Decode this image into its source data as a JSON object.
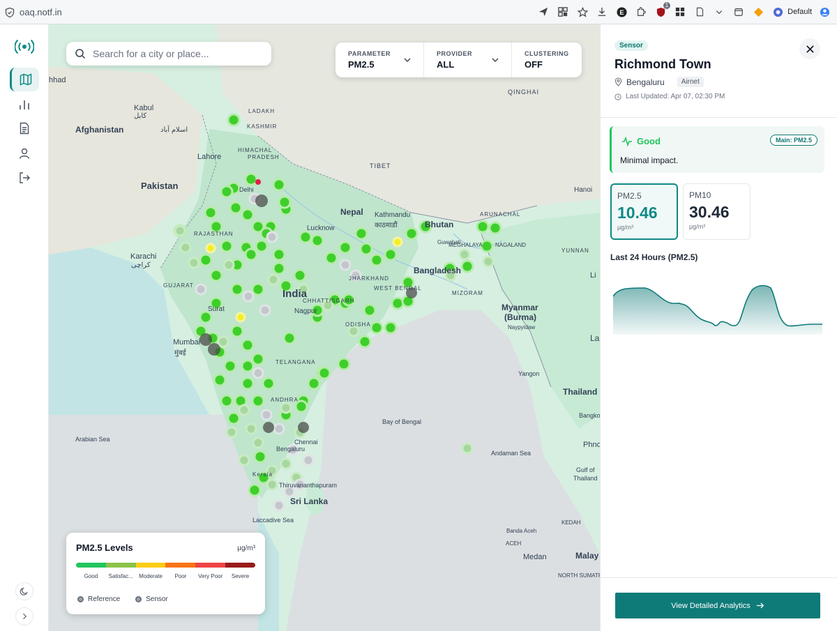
{
  "browser": {
    "url": "oaq.notf.in",
    "profile_label": "Default",
    "extension_badge": "1"
  },
  "search": {
    "placeholder": "Search for a city or place..."
  },
  "filters": [
    {
      "label": "PARAMETER",
      "value": "PM2.5"
    },
    {
      "label": "PROVIDER",
      "value": "ALL"
    },
    {
      "label": "CLUSTERING",
      "value": "OFF"
    }
  ],
  "map": {
    "labels": [
      "Afghanistan",
      "Kabul",
      "کابل",
      "اسلام آباد",
      "Pakistan",
      "Lahore",
      "Karachi",
      "کراچی",
      "Nepal",
      "Kathmandu",
      "काठमाडौं",
      "Bhutan",
      "Bangladesh",
      "India",
      "Mumbai",
      "मुंबई",
      "Sri Lanka",
      "Myanmar",
      "(Burma)",
      "Thailand",
      "Bay of Bengal",
      "Arabian Sea",
      "Andaman Sea",
      "Laccadive Sea",
      "TIBET",
      "QINGHAI",
      "LADAKH",
      "Naypyidaw",
      "Yangon",
      "Bangkok",
      "Medan",
      "Malay",
      "Banda Aceh",
      "Gulf of",
      "Thailand",
      "KASHMIR",
      "HIMACHAL",
      "PRADESH",
      "YUNNAN",
      "MIZORAM",
      "ARUNACHAL",
      "MEGHALAYA",
      "NAGALAND",
      "KEDAH",
      "NORTH SUMATRA",
      "ACEH",
      "Lucknow",
      "Guwahati",
      "Nagpur",
      "Surat",
      "ODISHA",
      "ANDHRA",
      "Thiruvananthapuram",
      "GUJARAT",
      "RAJASTHAN",
      "JHARKHAND",
      "WEST BENGAL",
      "CHHATTISGARH",
      "TELANGANA",
      "hhad",
      "Phno",
      "La",
      "Li",
      "Hanoi",
      "Kerala",
      "Delhi",
      "Chennai",
      "Bengaluru"
    ]
  },
  "legend": {
    "title": "PM2.5 Levels",
    "unit": "µg/m³",
    "levels": [
      "Good",
      "Satisfac...",
      "Moderate",
      "Poor",
      "Very Poor",
      "Severe"
    ],
    "level_colors": [
      "#22c55e",
      "#8bc34a",
      "#facc15",
      "#f97316",
      "#ef4444",
      "#991b1b"
    ],
    "types": [
      "Reference",
      "Sensor"
    ]
  },
  "panel": {
    "badge": "Sensor",
    "station_name": "Richmond Town",
    "city": "Bengaluru",
    "provider": "Airnet",
    "last_updated": "Last Updated: Apr 07, 02:30 PM",
    "status_label": "Good",
    "main_param": "Main: PM2.5",
    "status_desc": "Minimal impact.",
    "metrics": [
      {
        "name": "PM2.5",
        "value": "10.46",
        "unit": "µg/m³"
      },
      {
        "name": "PM10",
        "value": "30.46",
        "unit": "µg/m³"
      }
    ],
    "chart_title": "Last 24 Hours (PM2.5)",
    "analytics_button": "View Detailed Analytics"
  },
  "colors": {
    "accent": "#0f7b78",
    "good": "#22c55e"
  }
}
